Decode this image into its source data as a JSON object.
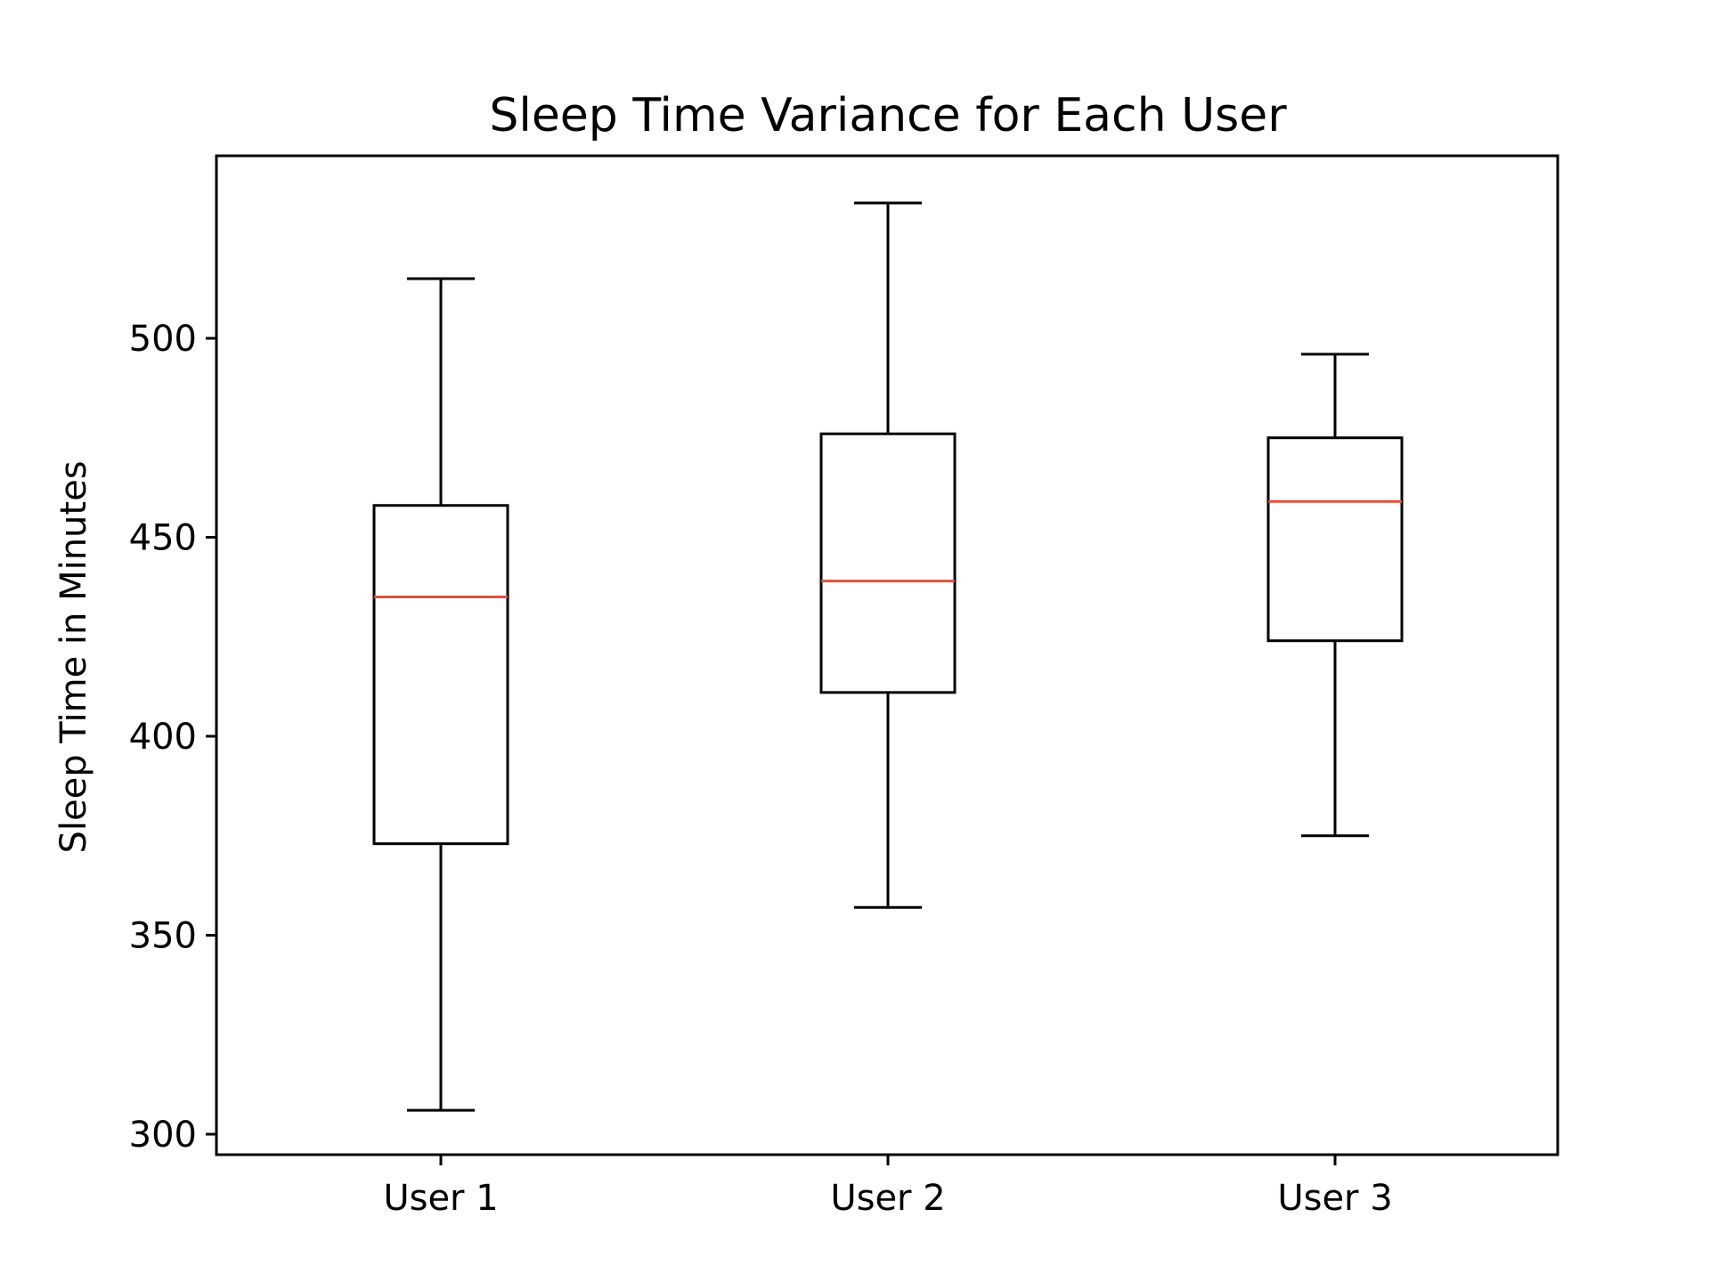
{
  "chart_data": {
    "type": "box",
    "title": "Sleep Time Variance for Each User",
    "xlabel": "",
    "ylabel": "Sleep Time in Minutes",
    "ylim": [
      295,
      540
    ],
    "yticks": [
      300,
      350,
      400,
      450,
      500
    ],
    "grid": false,
    "legend": "none",
    "categories": [
      "User 1",
      "User 2",
      "User 3"
    ],
    "boxes": [
      {
        "label": "User 1",
        "whisker_low": 306,
        "q1": 373,
        "median": 435,
        "q3": 458,
        "whisker_high": 515
      },
      {
        "label": "User 2",
        "whisker_low": 357,
        "q1": 411,
        "median": 439,
        "q3": 476,
        "whisker_high": 534
      },
      {
        "label": "User 3",
        "whisker_low": 375,
        "q1": 424,
        "median": 459,
        "q3": 475,
        "whisker_high": 496
      }
    ],
    "colors": {
      "box": "#000000",
      "median": "#e0523f",
      "frame": "#000000"
    }
  }
}
